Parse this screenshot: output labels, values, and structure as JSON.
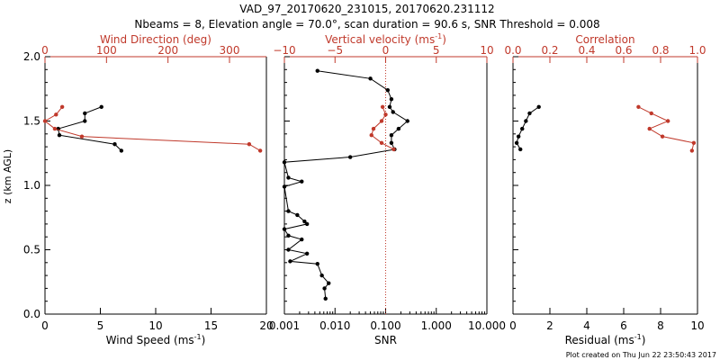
{
  "figure": {
    "title_line1": "VAD_97_20170620_231015, 20170620.231112",
    "title_line2": "Nbeams = 8, Elevation angle = 70.0°, scan duration = 90.6 s, SNR Threshold = 0.008",
    "footer": "Plot created on Thu Jun 22 23:50:43 2017",
    "colors": {
      "black": "#000000",
      "red": "#c0392b"
    }
  },
  "chart_data": [
    {
      "type": "line",
      "panel": "wind",
      "ylabel": "z (km AGL)",
      "ylim": [
        0,
        2
      ],
      "yticks": [
        "0.0",
        "0.5",
        "1.0",
        "1.5",
        "2.0"
      ],
      "x_bottom": {
        "label": "Wind Speed (ms",
        "label_sup": "-1",
        "label_end": ")",
        "range": [
          0,
          20
        ],
        "ticks": [
          "0",
          "5",
          "10",
          "15",
          "20"
        ]
      },
      "x_top": {
        "label": "Wind Direction (deg)",
        "range": [
          0,
          360
        ],
        "ticks": [
          "0",
          "100",
          "200",
          "300"
        ]
      },
      "series": [
        {
          "axis": "bottom",
          "color": "black",
          "points": [
            [
              5.1,
              1.61
            ],
            [
              3.6,
              1.56
            ],
            [
              3.6,
              1.5
            ],
            [
              1.2,
              1.44
            ],
            [
              1.3,
              1.39
            ],
            [
              6.3,
              1.32
            ],
            [
              6.9,
              1.27
            ]
          ]
        },
        {
          "axis": "top",
          "color": "red",
          "points": [
            [
              28,
              1.61
            ],
            [
              18,
              1.55
            ],
            [
              0,
              1.5
            ],
            [
              16,
              1.44
            ],
            [
              60,
              1.38
            ],
            [
              332,
              1.32
            ],
            [
              350,
              1.27
            ]
          ]
        }
      ]
    },
    {
      "type": "line",
      "panel": "snr",
      "ylim": [
        0,
        2
      ],
      "x_bottom": {
        "label": "SNR",
        "range": [
          0.001,
          10
        ],
        "scale": "log",
        "ticks": [
          "0.001",
          "0.010",
          "0.100",
          "1.000",
          "10.000"
        ]
      },
      "x_top": {
        "label": "Vertical velocity (ms",
        "label_sup": "-1",
        "label_end": ")",
        "range": [
          -10,
          10
        ],
        "ticks": [
          "−10",
          "−5",
          "0",
          "5",
          "10"
        ]
      },
      "vline_top_value": 0,
      "series": [
        {
          "axis": "bottom",
          "color": "black",
          "points": [
            [
              0.0045,
              1.89
            ],
            [
              0.05,
              1.83
            ],
            [
              0.11,
              1.74
            ],
            [
              0.13,
              1.67
            ],
            [
              0.12,
              1.61
            ],
            [
              0.14,
              1.57
            ],
            [
              0.27,
              1.5
            ],
            [
              0.18,
              1.44
            ],
            [
              0.13,
              1.39
            ],
            [
              0.13,
              1.33
            ],
            [
              0.15,
              1.28
            ],
            [
              0.02,
              1.22
            ],
            [
              0.001,
              1.18
            ],
            [
              0.0012,
              1.06
            ],
            [
              0.0022,
              1.03
            ],
            [
              0.001,
              0.99
            ],
            [
              0.0012,
              0.8
            ],
            [
              0.0018,
              0.77
            ],
            [
              0.0025,
              0.72
            ],
            [
              0.0028,
              0.7
            ],
            [
              0.001,
              0.66
            ],
            [
              0.0012,
              0.61
            ],
            [
              0.0022,
              0.58
            ],
            [
              0.0012,
              0.5
            ],
            [
              0.0028,
              0.47
            ],
            [
              0.0013,
              0.41
            ],
            [
              0.0045,
              0.39
            ],
            [
              0.0055,
              0.3
            ],
            [
              0.0075,
              0.24
            ],
            [
              0.0062,
              0.2
            ],
            [
              0.0065,
              0.12
            ]
          ]
        },
        {
          "axis": "top",
          "color": "red",
          "points": [
            [
              -0.3,
              1.61
            ],
            [
              0,
              1.55
            ],
            [
              -0.4,
              1.5
            ],
            [
              -1.2,
              1.44
            ],
            [
              -1.4,
              1.39
            ],
            [
              -0.4,
              1.33
            ],
            [
              0.8,
              1.28
            ]
          ]
        }
      ]
    },
    {
      "type": "line",
      "panel": "residual",
      "ylim": [
        0,
        2
      ],
      "x_bottom": {
        "label": "Residual (ms",
        "label_sup": "-1",
        "label_end": ")",
        "range": [
          0,
          10
        ],
        "ticks": [
          "0",
          "2",
          "4",
          "6",
          "8",
          "10"
        ]
      },
      "x_top": {
        "label": "Correlation",
        "range": [
          0,
          1
        ],
        "ticks": [
          "0.0",
          "0.2",
          "0.4",
          "0.6",
          "0.8",
          "1.0"
        ]
      },
      "series": [
        {
          "axis": "bottom",
          "color": "black",
          "points": [
            [
              1.4,
              1.61
            ],
            [
              0.9,
              1.56
            ],
            [
              0.7,
              1.5
            ],
            [
              0.5,
              1.44
            ],
            [
              0.3,
              1.38
            ],
            [
              0.2,
              1.33
            ],
            [
              0.4,
              1.28
            ]
          ]
        },
        {
          "axis": "top",
          "color": "red",
          "points": [
            [
              0.68,
              1.61
            ],
            [
              0.75,
              1.56
            ],
            [
              0.84,
              1.5
            ],
            [
              0.74,
              1.44
            ],
            [
              0.81,
              1.38
            ],
            [
              0.98,
              1.33
            ],
            [
              0.97,
              1.27
            ]
          ]
        }
      ]
    }
  ]
}
